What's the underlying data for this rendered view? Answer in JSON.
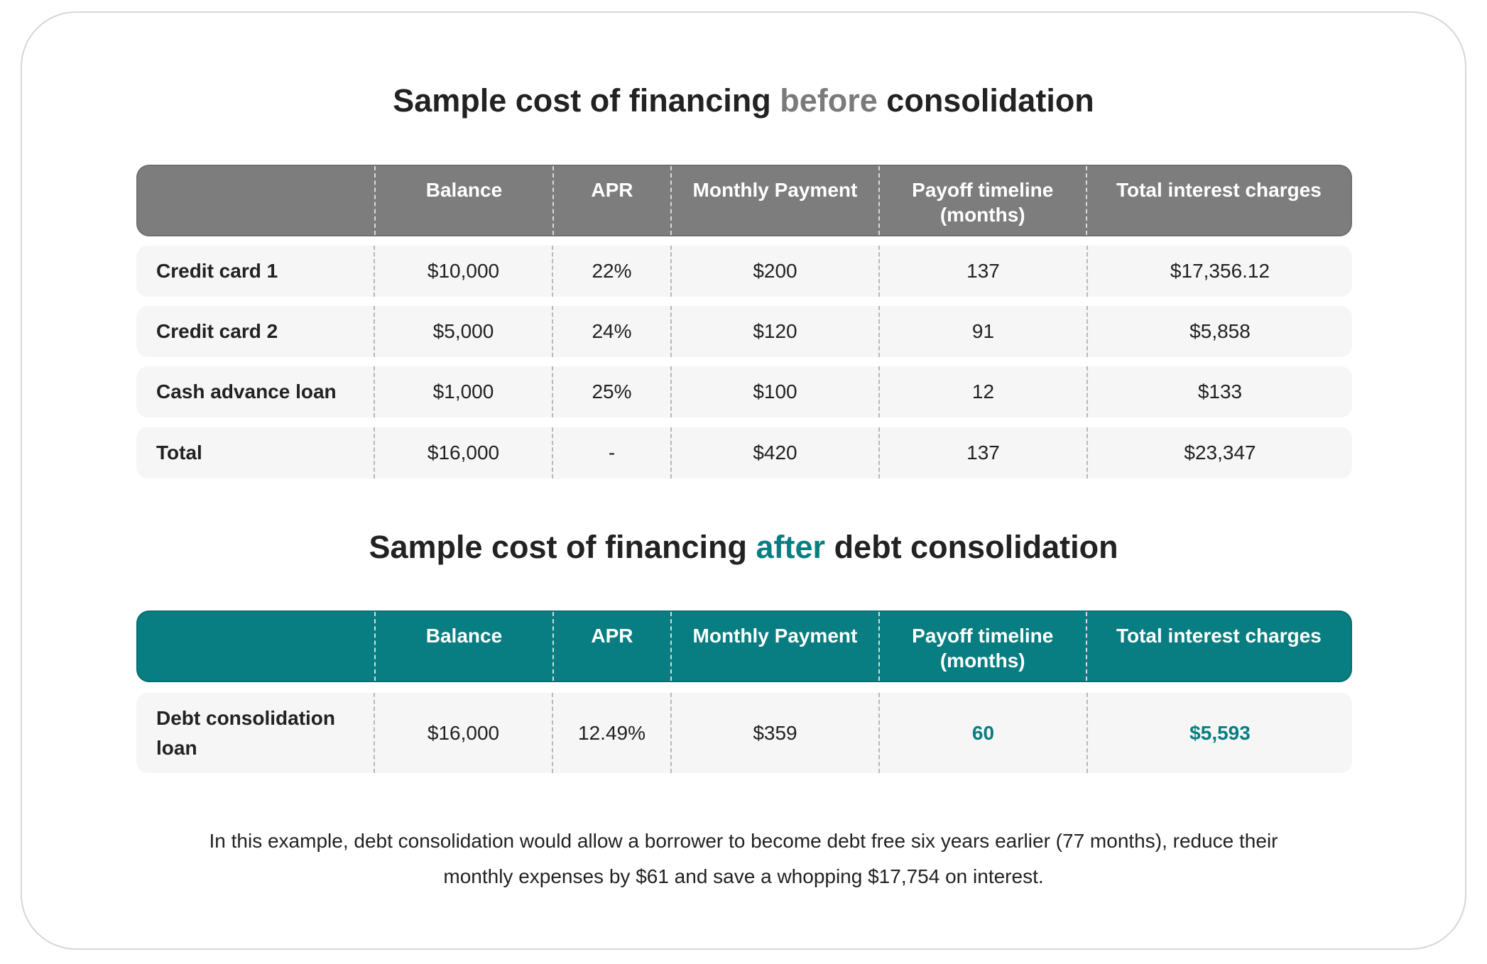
{
  "before": {
    "title_prefix": "Sample cost of financing ",
    "title_accent": "before",
    "title_suffix": " consolidation",
    "headers": [
      "",
      "Balance",
      "APR",
      "Monthly Payment",
      "Payoff timeline (months)",
      "Total interest charges"
    ],
    "rows": [
      [
        "Credit card 1",
        "$10,000",
        "22%",
        "$200",
        "137",
        "$17,356.12"
      ],
      [
        "Credit card 2",
        "$5,000",
        "24%",
        "$120",
        "91",
        "$5,858"
      ],
      [
        "Cash advance loan",
        "$1,000",
        "25%",
        "$100",
        "12",
        "$133"
      ],
      [
        "Total",
        "$16,000",
        "-",
        "$420",
        "137",
        "$23,347"
      ]
    ]
  },
  "after": {
    "title_prefix": "Sample cost of financing ",
    "title_accent": "after",
    "title_suffix": " debt consolidation",
    "headers": [
      "",
      "Balance",
      "APR",
      "Monthly Payment",
      "Payoff timeline (months)",
      "Total interest charges"
    ],
    "rows": [
      [
        "Debt consolidation loan",
        "$16,000",
        "12.49%",
        "$359",
        "60",
        "$5,593"
      ]
    ]
  },
  "summary": {
    "line1": "In this example, debt consolidation would allow a borrower to become debt free six years earlier (77 months), reduce their",
    "line2": "monthly expenses by $61 and save a whopping $17,754 on interest."
  },
  "colors": {
    "before_header": "#7d7d7d",
    "after_header": "#087e82",
    "row_background": "#f6f6f6",
    "highlight": "#087e82"
  }
}
